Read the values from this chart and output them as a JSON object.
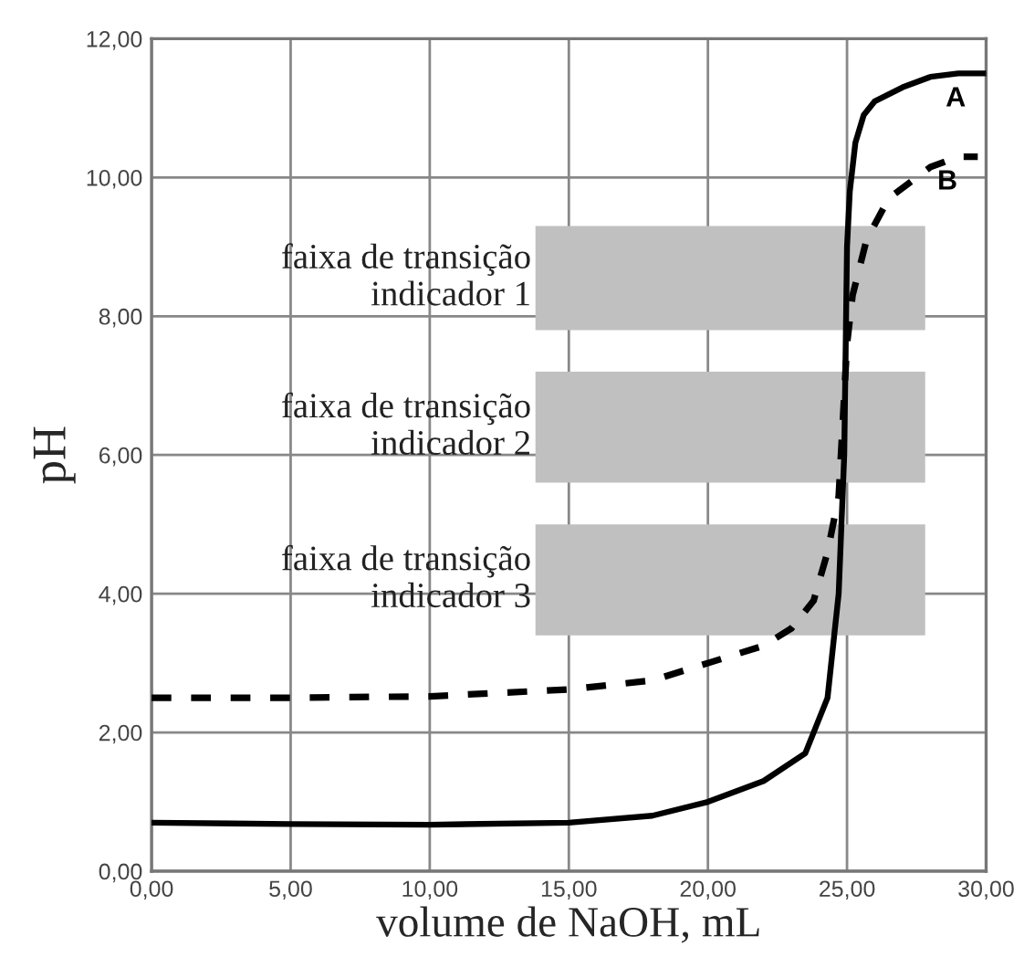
{
  "chart_data": {
    "type": "line",
    "xlabel": "volume de NaOH, mL",
    "ylabel": "pH",
    "xlim": [
      0,
      30
    ],
    "ylim": [
      0,
      12
    ],
    "xticks": [
      {
        "value": 0,
        "label": "0,00"
      },
      {
        "value": 5,
        "label": "5,00"
      },
      {
        "value": 10,
        "label": "10,00"
      },
      {
        "value": 15,
        "label": "15,00"
      },
      {
        "value": 20,
        "label": "20,00"
      },
      {
        "value": 25,
        "label": "25,00"
      },
      {
        "value": 30,
        "label": "30,00"
      }
    ],
    "yticks": [
      {
        "value": 0,
        "label": "0,00"
      },
      {
        "value": 2,
        "label": "2,00"
      },
      {
        "value": 4,
        "label": "4,00"
      },
      {
        "value": 6,
        "label": "6,00"
      },
      {
        "value": 8,
        "label": "8,00"
      },
      {
        "value": 10,
        "label": "10,00"
      },
      {
        "value": 12,
        "label": "12,00"
      }
    ],
    "grid": true,
    "legend": false,
    "marker": "none",
    "series": [
      {
        "name": "A",
        "color": "#000000",
        "line_style": "solid",
        "x": [
          0,
          5,
          10,
          15,
          18,
          20,
          22,
          23.5,
          24.3,
          24.7,
          24.9,
          25.0,
          25.1,
          25.3,
          25.6,
          26,
          27,
          28,
          29,
          30
        ],
        "values": [
          0.7,
          0.68,
          0.67,
          0.7,
          0.8,
          1.0,
          1.3,
          1.7,
          2.5,
          4.0,
          6.0,
          9.0,
          9.8,
          10.5,
          10.9,
          11.1,
          11.3,
          11.45,
          11.5,
          11.5
        ]
      },
      {
        "name": "B",
        "color": "#000000",
        "line_style": "dashed",
        "x": [
          0,
          5,
          10,
          15,
          18,
          20,
          22,
          23,
          23.8,
          24.3,
          24.7,
          25.0,
          25.2,
          25.7,
          26.5,
          28,
          29,
          29.7
        ],
        "values": [
          2.5,
          2.5,
          2.52,
          2.62,
          2.75,
          3.0,
          3.25,
          3.5,
          3.9,
          4.6,
          5.4,
          7.6,
          8.3,
          9.1,
          9.7,
          10.15,
          10.3,
          10.3
        ]
      }
    ],
    "bands": [
      {
        "axis": "y",
        "from": 7.8,
        "to": 9.3,
        "label": "faixa de transição\nindicador 1",
        "color": "#c0c0c0"
      },
      {
        "axis": "y",
        "from": 5.6,
        "to": 7.2,
        "label": "faixa de transição\nindicador 2",
        "color": "#c0c0c0"
      },
      {
        "axis": "y",
        "from": 3.4,
        "to": 5.0,
        "label": "faixa de transição\nindicador 3",
        "color": "#c0c0c0"
      }
    ]
  }
}
